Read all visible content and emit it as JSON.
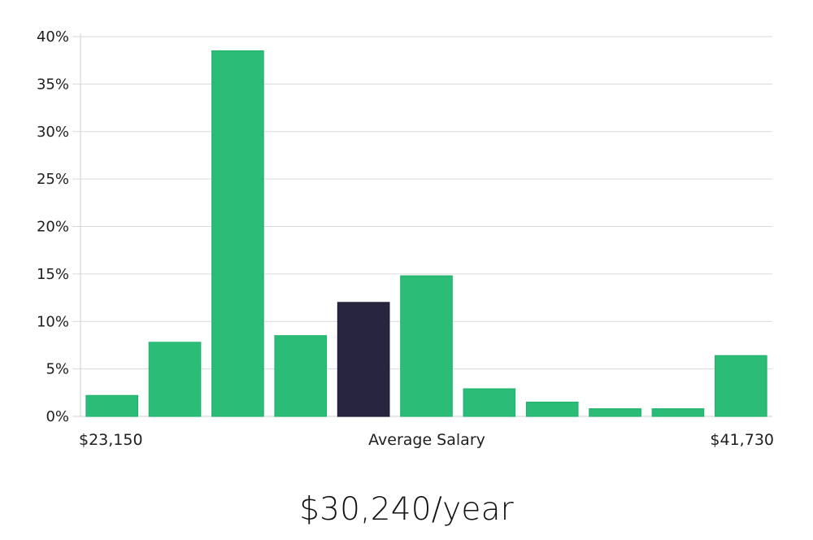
{
  "summary": {
    "average_salary_text": "$30,240/year"
  },
  "chart_data": {
    "type": "bar",
    "title": "",
    "subtitle": "",
    "xlabel": "",
    "ylabel": "",
    "ylim": [
      0,
      40
    ],
    "yticks": [
      0,
      5,
      10,
      15,
      20,
      25,
      30,
      35,
      40
    ],
    "ytick_labels": [
      "0%",
      "5%",
      "10%",
      "15%",
      "20%",
      "25%",
      "30%",
      "35%",
      "40%"
    ],
    "grid": true,
    "legend": "none",
    "x_labels": {
      "left": "$23,150",
      "center": "Average Salary",
      "right": "$41,730"
    },
    "categories": [
      "",
      "",
      "",
      "",
      "",
      "",
      "",
      "",
      "",
      "",
      ""
    ],
    "values": [
      2.2,
      7.8,
      38.5,
      8.5,
      12.0,
      14.8,
      2.9,
      1.5,
      0.8,
      0.8,
      6.4
    ],
    "highlight_index": 4,
    "colors": {
      "bar": "#2bbd78",
      "highlight": "#272540",
      "grid": "#d9d9d9",
      "axis": "#cfcfcf",
      "text": "#1f1f1f"
    }
  }
}
